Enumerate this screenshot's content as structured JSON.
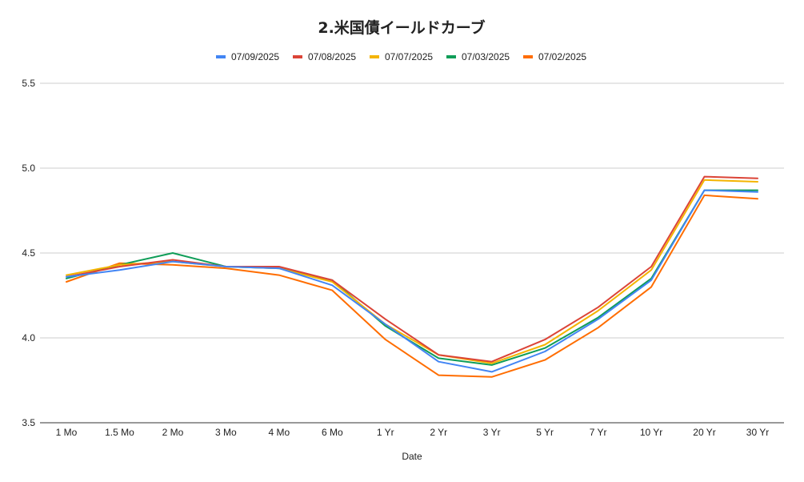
{
  "chart_data": {
    "type": "line",
    "title": "2.米国債イールドカーブ",
    "xlabel": "Date",
    "ylabel": "",
    "categories": [
      "1 Mo",
      "1.5 Mo",
      "2 Mo",
      "3 Mo",
      "4 Mo",
      "6 Mo",
      "1 Yr",
      "2 Yr",
      "3 Yr",
      "5 Yr",
      "7 Yr",
      "10 Yr",
      "20 Yr",
      "30 Yr"
    ],
    "ylim": [
      3.5,
      5.5
    ],
    "yticks": [
      "3.5",
      "4.0",
      "4.5",
      "5.0",
      "5.5"
    ],
    "grid": true,
    "legend_position": "top",
    "series": [
      {
        "name": "07/09/2025",
        "color": "#4285f4",
        "values": [
          4.36,
          4.4,
          4.45,
          4.42,
          4.41,
          4.31,
          4.08,
          3.86,
          3.8,
          3.92,
          4.11,
          4.34,
          4.87,
          4.86
        ]
      },
      {
        "name": "07/08/2025",
        "color": "#db4437",
        "values": [
          4.36,
          4.42,
          4.46,
          4.42,
          4.42,
          4.34,
          4.11,
          3.9,
          3.86,
          3.99,
          4.18,
          4.42,
          4.95,
          4.94
        ]
      },
      {
        "name": "07/07/2025",
        "color": "#f4b400",
        "values": [
          4.37,
          4.43,
          4.45,
          4.42,
          4.41,
          4.33,
          4.08,
          3.9,
          3.85,
          3.96,
          4.16,
          4.4,
          4.93,
          4.92
        ]
      },
      {
        "name": "07/03/2025",
        "color": "#0f9d58",
        "values": [
          4.35,
          4.43,
          4.5,
          4.42,
          4.41,
          4.34,
          4.07,
          3.88,
          3.84,
          3.94,
          4.12,
          4.35,
          4.87,
          4.87
        ]
      },
      {
        "name": "07/02/2025",
        "color": "#ff6d00",
        "values": [
          4.33,
          4.44,
          4.43,
          4.41,
          4.37,
          4.28,
          3.99,
          3.78,
          3.77,
          3.87,
          4.06,
          4.3,
          4.84,
          4.82
        ]
      }
    ]
  }
}
